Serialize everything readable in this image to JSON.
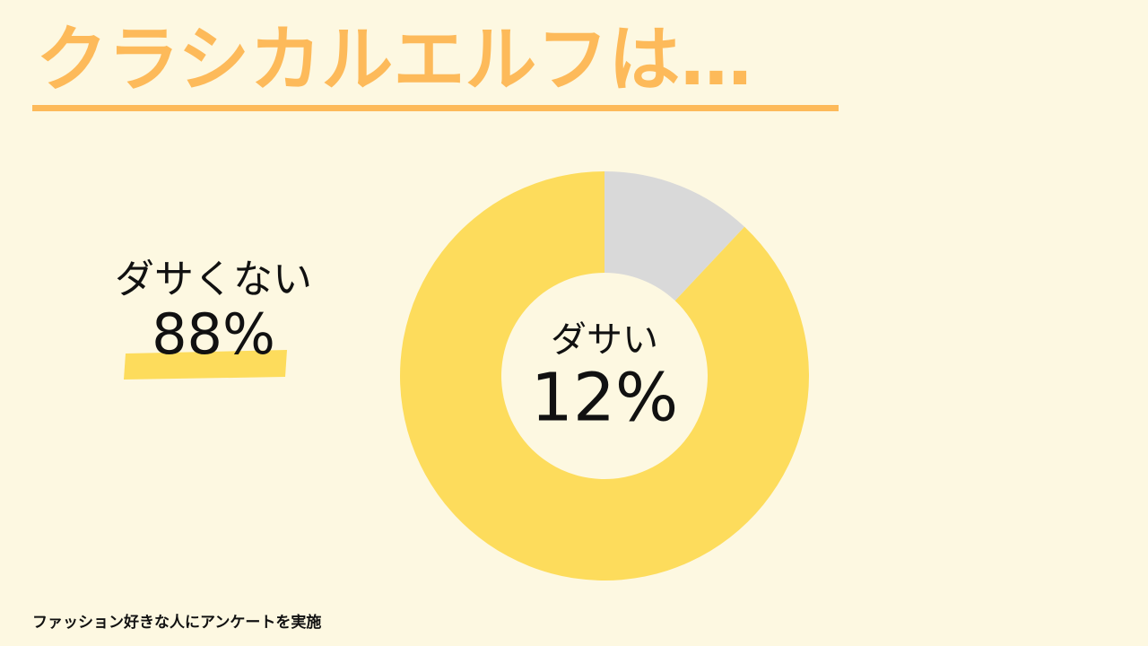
{
  "chart_data": {
    "type": "donut",
    "title": "クラシカルエルフは…",
    "categories": [
      "ダサくない",
      "ダサい"
    ],
    "values": [
      88,
      12
    ],
    "value_labels": [
      "88%",
      "12%"
    ],
    "colors": [
      "#fddc5c",
      "#d9d9d9"
    ],
    "note": "ファッション好きな人にアンケートを実施"
  }
}
